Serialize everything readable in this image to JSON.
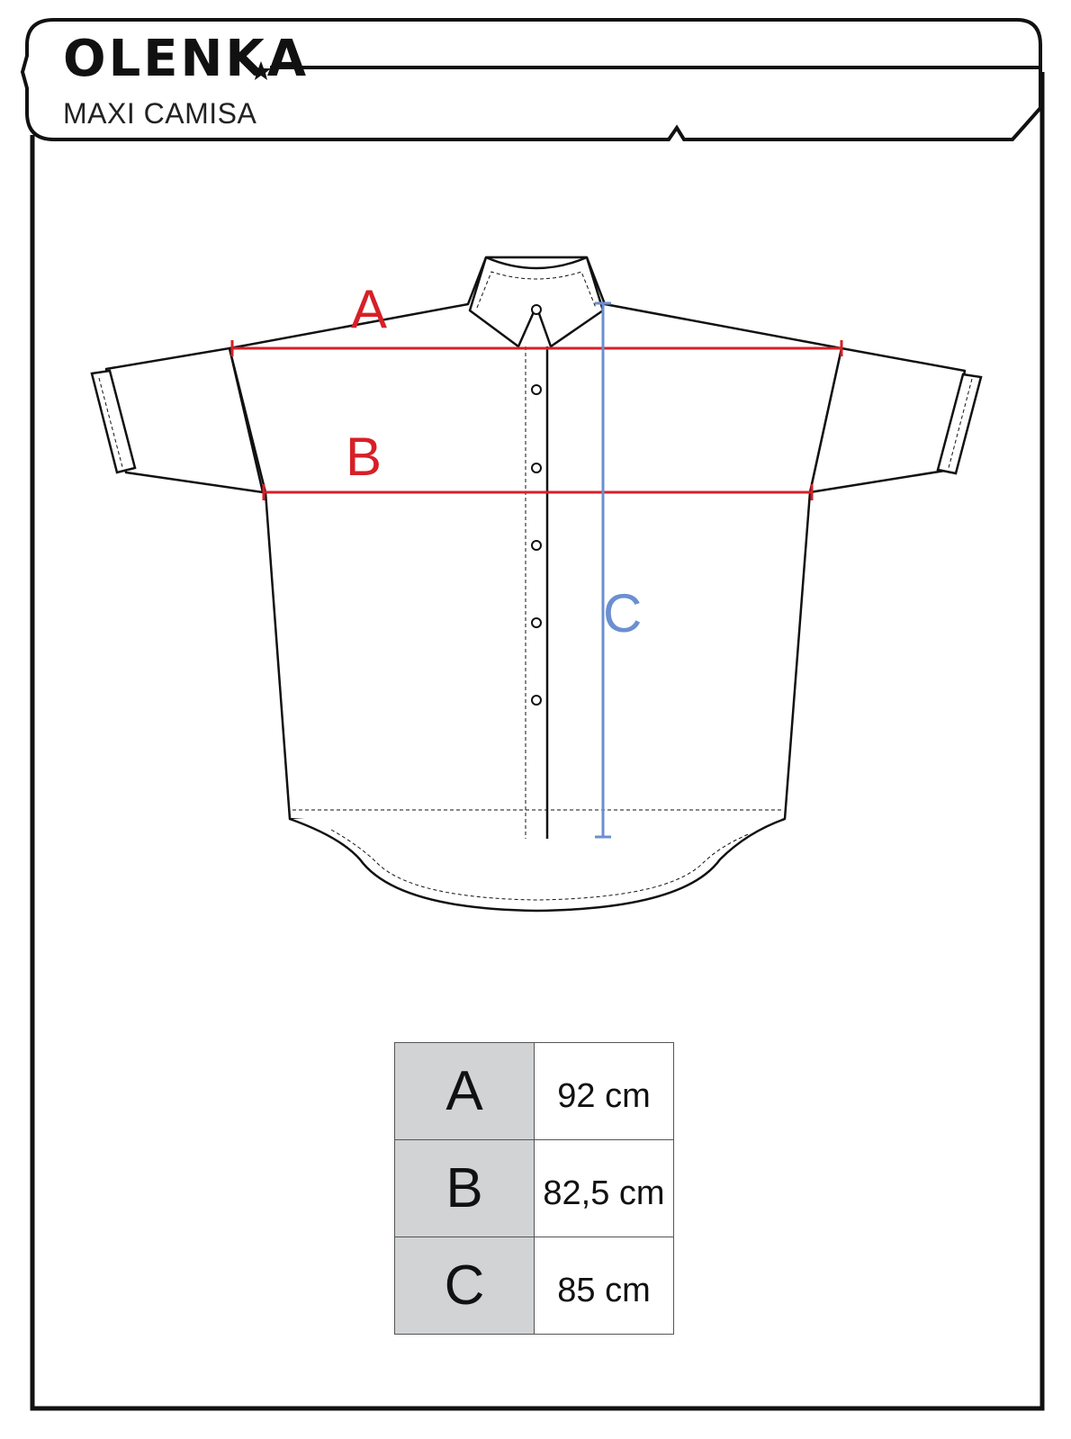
{
  "header": {
    "brand": "OLENKA",
    "product": "MAXI CAMISA"
  },
  "diagram": {
    "labels": {
      "a": "A",
      "b": "B",
      "c": "C"
    },
    "colors": {
      "width_lines": "#d62027",
      "length_line": "#6b8fd0",
      "outline": "#111111"
    }
  },
  "size_table": {
    "rows": [
      {
        "key": "A",
        "value": "92 cm"
      },
      {
        "key": "B",
        "value": "82,5 cm"
      },
      {
        "key": "C",
        "value": "85 cm"
      }
    ]
  }
}
